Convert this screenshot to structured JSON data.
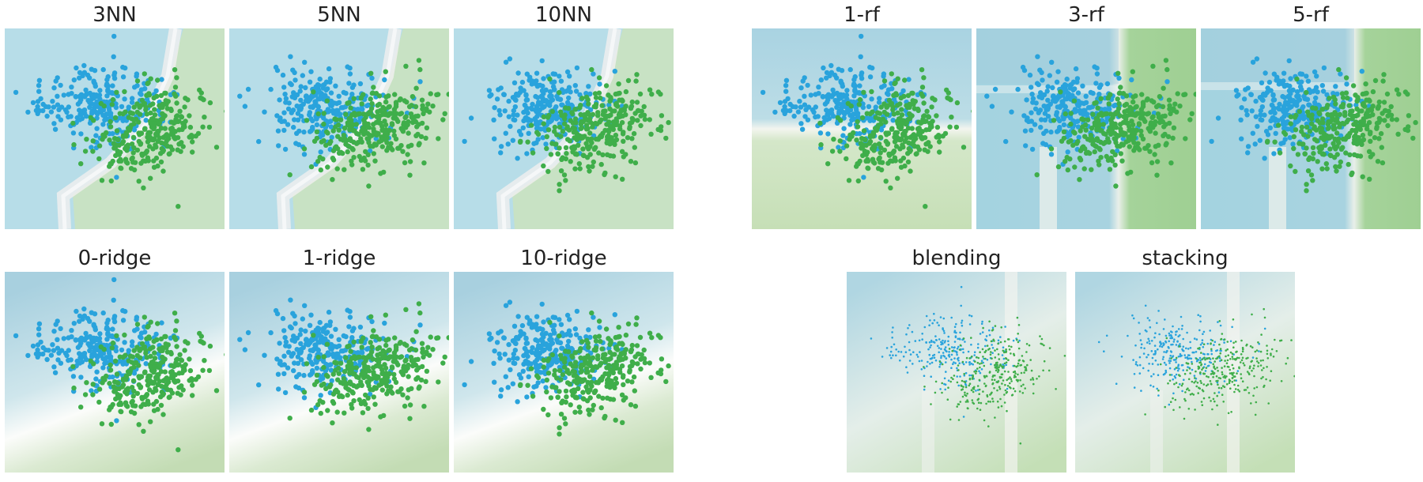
{
  "panels": [
    {
      "id": "p3nn",
      "title": "3NN",
      "bg": "knn",
      "k": 1
    },
    {
      "id": "p5nn",
      "title": "5NN",
      "bg": "knn",
      "k": 2
    },
    {
      "id": "p10nn",
      "title": "10NN",
      "bg": "knn",
      "k": 3
    },
    {
      "id": "p1rf",
      "title": "1-rf",
      "bg": "rf1",
      "k": 0
    },
    {
      "id": "p3rf",
      "title": "3-rf",
      "bg": "rf3",
      "k": 0
    },
    {
      "id": "p5rf",
      "title": "5-rf",
      "bg": "rf3",
      "k": 1
    },
    {
      "id": "p0ridge",
      "title": "0-ridge",
      "bg": "ridge",
      "k": 0
    },
    {
      "id": "p1ridge",
      "title": "1-ridge",
      "bg": "ridge",
      "k": 1
    },
    {
      "id": "p10ridge",
      "title": "10-ridge",
      "bg": "ridge",
      "k": 2
    },
    {
      "id": "pblend",
      "title": "blending",
      "bg": "blend",
      "k": 0
    },
    {
      "id": "pstack",
      "title": "stacking",
      "bg": "blend",
      "k": 1
    }
  ],
  "colors": {
    "class_a": "#29a3dc",
    "class_b": "#3fae4a",
    "region_a": "#b7dde8",
    "region_b": "#c8e2c4",
    "boundary": "#eeeeee"
  }
}
